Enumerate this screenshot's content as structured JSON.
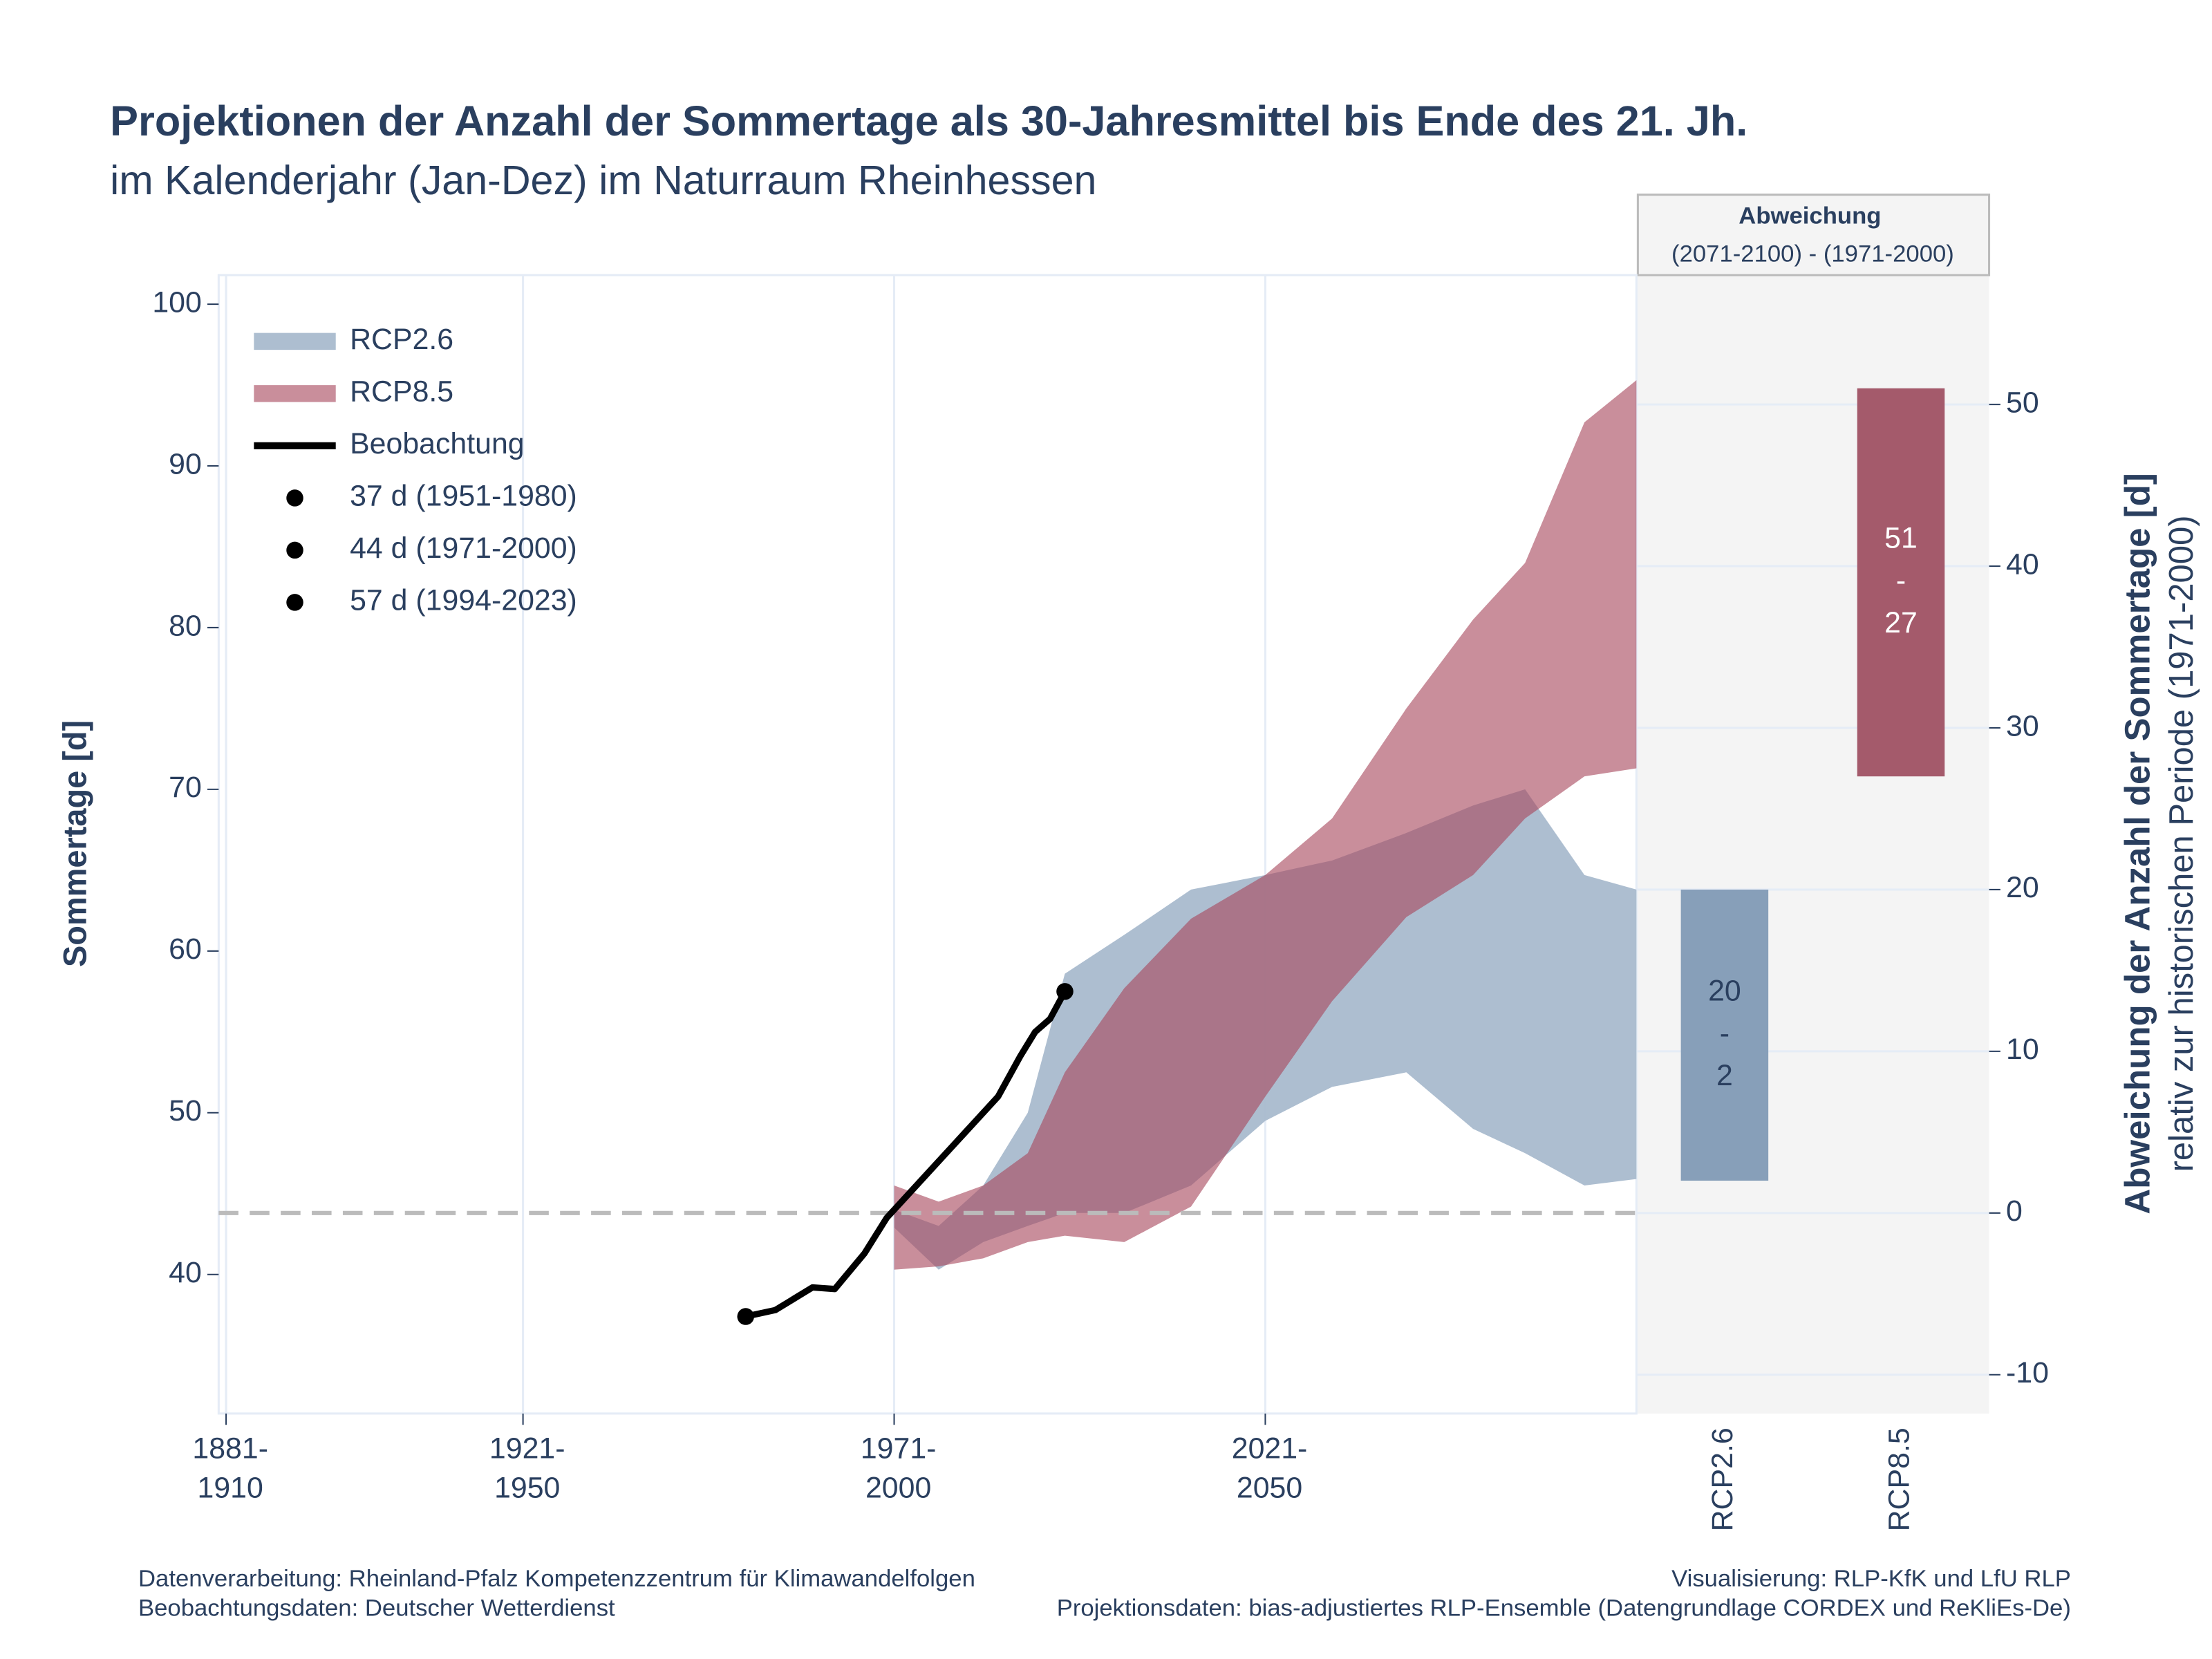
{
  "chart_data": {
    "type": "band",
    "title": "Projektionen der Anzahl der Sommertage als 30-Jahresmittel bis Ende des 21. Jh.",
    "subtitle": "im Kalenderjahr (Jan-Dez) im Naturraum Rheinhessen",
    "y_label": "Sommertage [d]",
    "y2_label": "Abweichung der Anzahl der Sommertage [d]",
    "y2_sublabel": "relativ zur historischen Periode (1971-2000)",
    "xlim": [
      1880,
      2071
    ],
    "xticks": [
      {
        "value": 1881,
        "label": [
          "1881-",
          "1910"
        ]
      },
      {
        "value": 1921,
        "label": [
          "1921-",
          "1950"
        ]
      },
      {
        "value": 1971,
        "label": [
          "1971-",
          "2000"
        ]
      },
      {
        "value": 2021,
        "label": [
          "2021-",
          "2050"
        ]
      }
    ],
    "ylim": [
      31.4,
      101.8
    ],
    "yticks": [
      40,
      50,
      60,
      70,
      80,
      90,
      100
    ],
    "y2lim": [
      -12.4,
      58.0
    ],
    "y2ticks": [
      -10,
      0,
      10,
      20,
      30,
      40,
      50
    ],
    "reference": 43.8,
    "legend": "upper left",
    "bands": [
      {
        "name": "RCP2.6",
        "color": "#a9bacd",
        "x": [
          1971,
          1977,
          1983,
          1989,
          1994,
          2002,
          2011,
          2021,
          2030,
          2040,
          2049,
          2056,
          2064,
          2071
        ],
        "upper": [
          44,
          43,
          45.5,
          50,
          58.6,
          61,
          63.8,
          64.7,
          65.6,
          67.3,
          69,
          70,
          64.7,
          63.8
        ],
        "lower": [
          42.9,
          40.3,
          42,
          43,
          43.8,
          43.8,
          45.5,
          49.5,
          51.6,
          52.5,
          49,
          47.5,
          45.5,
          45.9
        ]
      },
      {
        "name": "RCP8.5",
        "color": "#a8485e",
        "x": [
          1971,
          1977,
          1983,
          1989,
          1994,
          2002,
          2011,
          2021,
          2030,
          2040,
          2049,
          2056,
          2064,
          2071
        ],
        "upper": [
          45.5,
          44.5,
          45.5,
          47.5,
          52.5,
          57.7,
          62,
          64.7,
          68.2,
          75,
          80.5,
          84,
          92.7,
          95.3
        ],
        "lower": [
          40.3,
          40.5,
          41,
          42,
          42.4,
          42,
          44.2,
          51,
          56.9,
          62.1,
          64.7,
          68.2,
          70.8,
          71.3
        ]
      }
    ],
    "observation": {
      "name": "Beobachtung",
      "color": "#000000",
      "x": [
        1951,
        1955,
        1960,
        1963,
        1967,
        1970,
        1973,
        1976,
        1979,
        1982,
        1985,
        1988,
        1990,
        1992,
        1994
      ],
      "values": [
        37.4,
        37.8,
        39.2,
        39.1,
        41.3,
        43.5,
        45,
        46.5,
        48,
        49.5,
        51,
        53.5,
        55,
        55.8,
        57.5
      ]
    },
    "legend_notes": [
      "37 d (1951-1980)",
      "44 d (1971-2000)",
      "57 d (1994-2023)"
    ],
    "panel": {
      "title": "Abweichung",
      "subtitle": "(2071-2100) - (1971-2000)",
      "categories": [
        "RCP2.6",
        "RCP8.5"
      ],
      "colors": [
        "#879fb9",
        "#a45a6b"
      ],
      "high": [
        20,
        51
      ],
      "low": [
        2,
        27
      ],
      "separator": "-"
    },
    "footer": {
      "left1": "Datenverarbeitung: Rheinland-Pfalz Kompetenzzentrum für Klimawandelfolgen",
      "left2": "Beobachtungsdaten:  Deutscher Wetterdienst",
      "right1": "Visualisierung: RLP-KfK und LfU RLP",
      "right2": "Projektionsdaten: bias-adjustiertes RLP-Ensemble (Datengrundlage CORDEX und ReKliEs-De)"
    }
  }
}
